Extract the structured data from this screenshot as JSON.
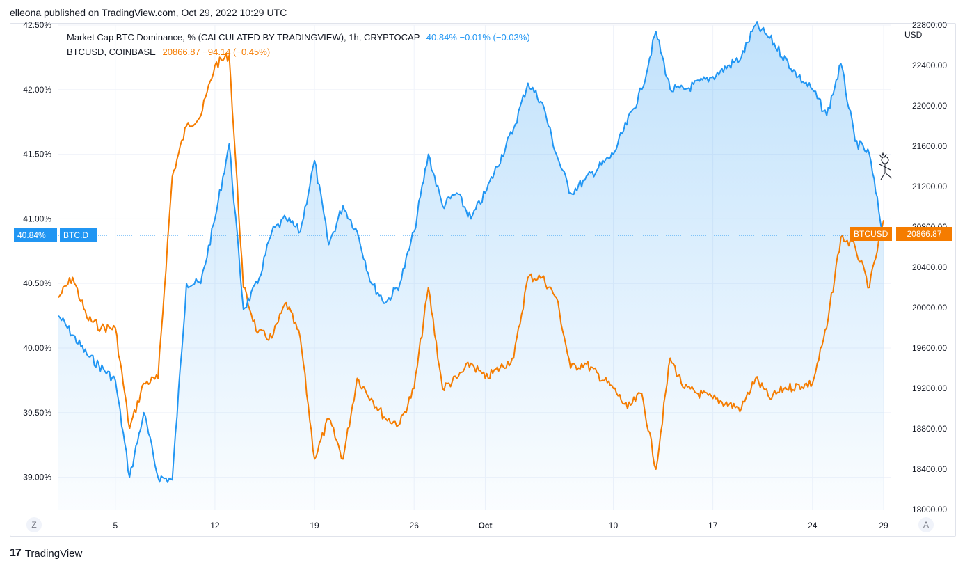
{
  "header": {
    "published": "elleona published on TradingView.com, Oct 29, 2022 10:29 UTC"
  },
  "legend": {
    "btcd_label": "Market Cap BTC Dominance, % (CALCULATED BY TRADINGVIEW), 1h, CRYPTOCAP",
    "btcd_values": "40.84%  −0.01% (−0.03%)",
    "btc_label": "BTCUSD, COINBASE",
    "btc_values": "20866.87  −94.14 (−0.45%)"
  },
  "axis": {
    "right_unit": "USD",
    "left_ticks": [
      "42.50%",
      "42.00%",
      "41.50%",
      "41.00%",
      "40.50%",
      "40.00%",
      "39.50%",
      "39.00%"
    ],
    "right_ticks": [
      "22800.00",
      "22400.00",
      "22000.00",
      "21600.00",
      "21200.00",
      "20800.00",
      "20400.00",
      "20000.00",
      "19600.00",
      "19200.00",
      "18800.00",
      "18400.00",
      "18000.00"
    ],
    "x_ticks": [
      "5",
      "12",
      "19",
      "26",
      "Oct",
      "10",
      "17",
      "24",
      "29"
    ]
  },
  "tags": {
    "btcd_value": "40.84%",
    "btcd_name": "BTC.D",
    "btc_name": "BTCUSD",
    "btc_value": "20866.87"
  },
  "buttons": {
    "left": "Z",
    "right": "A"
  },
  "footer": {
    "brand": "TradingView"
  },
  "colors": {
    "btcd": "#2196f3",
    "btc": "#f57c00"
  },
  "chart_data": {
    "type": "line",
    "series": [
      {
        "name": "BTC.D",
        "axis": "left",
        "unit": "%",
        "x": [
          "Sep 1",
          "Sep 3",
          "Sep 5",
          "Sep 6",
          "Sep 7",
          "Sep 8",
          "Sep 9",
          "Sep 10",
          "Sep 11",
          "Sep 12",
          "Sep 13",
          "Sep 14",
          "Sep 15",
          "Sep 16",
          "Sep 17",
          "Sep 18",
          "Sep 19",
          "Sep 20",
          "Sep 21",
          "Sep 22",
          "Sep 23",
          "Sep 24",
          "Sep 25",
          "Sep 26",
          "Sep 27",
          "Sep 28",
          "Sep 29",
          "Sep 30",
          "Oct 1",
          "Oct 3",
          "Oct 4",
          "Oct 5",
          "Oct 6",
          "Oct 7",
          "Oct 8",
          "Oct 10",
          "Oct 12",
          "Oct 13",
          "Oct 14",
          "Oct 15",
          "Oct 17",
          "Oct 19",
          "Oct 20",
          "Oct 21",
          "Oct 23",
          "Oct 24",
          "Oct 25",
          "Oct 26",
          "Oct 27",
          "Oct 28",
          "Oct 29"
        ],
        "values": [
          40.25,
          39.95,
          39.75,
          39.0,
          39.5,
          39.0,
          38.98,
          40.5,
          40.5,
          41.0,
          41.58,
          40.3,
          40.5,
          40.9,
          41.0,
          40.9,
          41.45,
          40.8,
          41.1,
          40.9,
          40.5,
          40.35,
          40.5,
          40.9,
          41.5,
          41.1,
          41.2,
          41.0,
          41.2,
          41.7,
          42.05,
          41.9,
          41.5,
          41.2,
          41.3,
          41.5,
          42.0,
          42.45,
          42.0,
          42.0,
          42.1,
          42.25,
          42.5,
          42.4,
          42.1,
          42.0,
          41.8,
          42.2,
          41.6,
          41.5,
          40.84
        ]
      },
      {
        "name": "BTCUSD",
        "axis": "right",
        "unit": "USD",
        "x": [
          "Sep 1",
          "Sep 2",
          "Sep 3",
          "Sep 4",
          "Sep 5",
          "Sep 6",
          "Sep 7",
          "Sep 8",
          "Sep 9",
          "Sep 10",
          "Sep 11",
          "Sep 12",
          "Sep 13",
          "Sep 14",
          "Sep 15",
          "Sep 16",
          "Sep 17",
          "Sep 18",
          "Sep 19",
          "Sep 20",
          "Sep 21",
          "Sep 22",
          "Sep 23",
          "Sep 24",
          "Sep 25",
          "Sep 26",
          "Sep 27",
          "Sep 28",
          "Sep 29",
          "Sep 30",
          "Oct 1",
          "Oct 3",
          "Oct 4",
          "Oct 5",
          "Oct 6",
          "Oct 7",
          "Oct 8",
          "Oct 10",
          "Oct 11",
          "Oct 12",
          "Oct 13",
          "Oct 14",
          "Oct 15",
          "Oct 17",
          "Oct 19",
          "Oct 20",
          "Oct 21",
          "Oct 22",
          "Oct 24",
          "Oct 25",
          "Oct 26",
          "Oct 27",
          "Oct 28",
          "Oct 29"
        ],
        "values": [
          20100,
          20300,
          19900,
          19800,
          19800,
          18800,
          19250,
          19300,
          21300,
          21800,
          21900,
          22400,
          22500,
          20200,
          19750,
          19700,
          20050,
          19700,
          18500,
          18900,
          18500,
          19300,
          19100,
          18900,
          18850,
          19200,
          20200,
          19200,
          19300,
          19450,
          19300,
          19500,
          20300,
          20300,
          20100,
          19400,
          19450,
          19200,
          19000,
          19150,
          18400,
          19500,
          19200,
          19100,
          19000,
          19300,
          19100,
          19200,
          19250,
          19800,
          20700,
          20600,
          20200,
          20866.87
        ]
      }
    ],
    "left_axis": {
      "range": [
        38.75,
        42.5
      ],
      "labels": "%"
    },
    "right_axis": {
      "range": [
        18000,
        22800
      ],
      "unit": "USD"
    },
    "x_axis": {
      "ticks": [
        "5",
        "12",
        "19",
        "26",
        "Oct",
        "10",
        "17",
        "24",
        "29"
      ]
    },
    "grid": true
  }
}
